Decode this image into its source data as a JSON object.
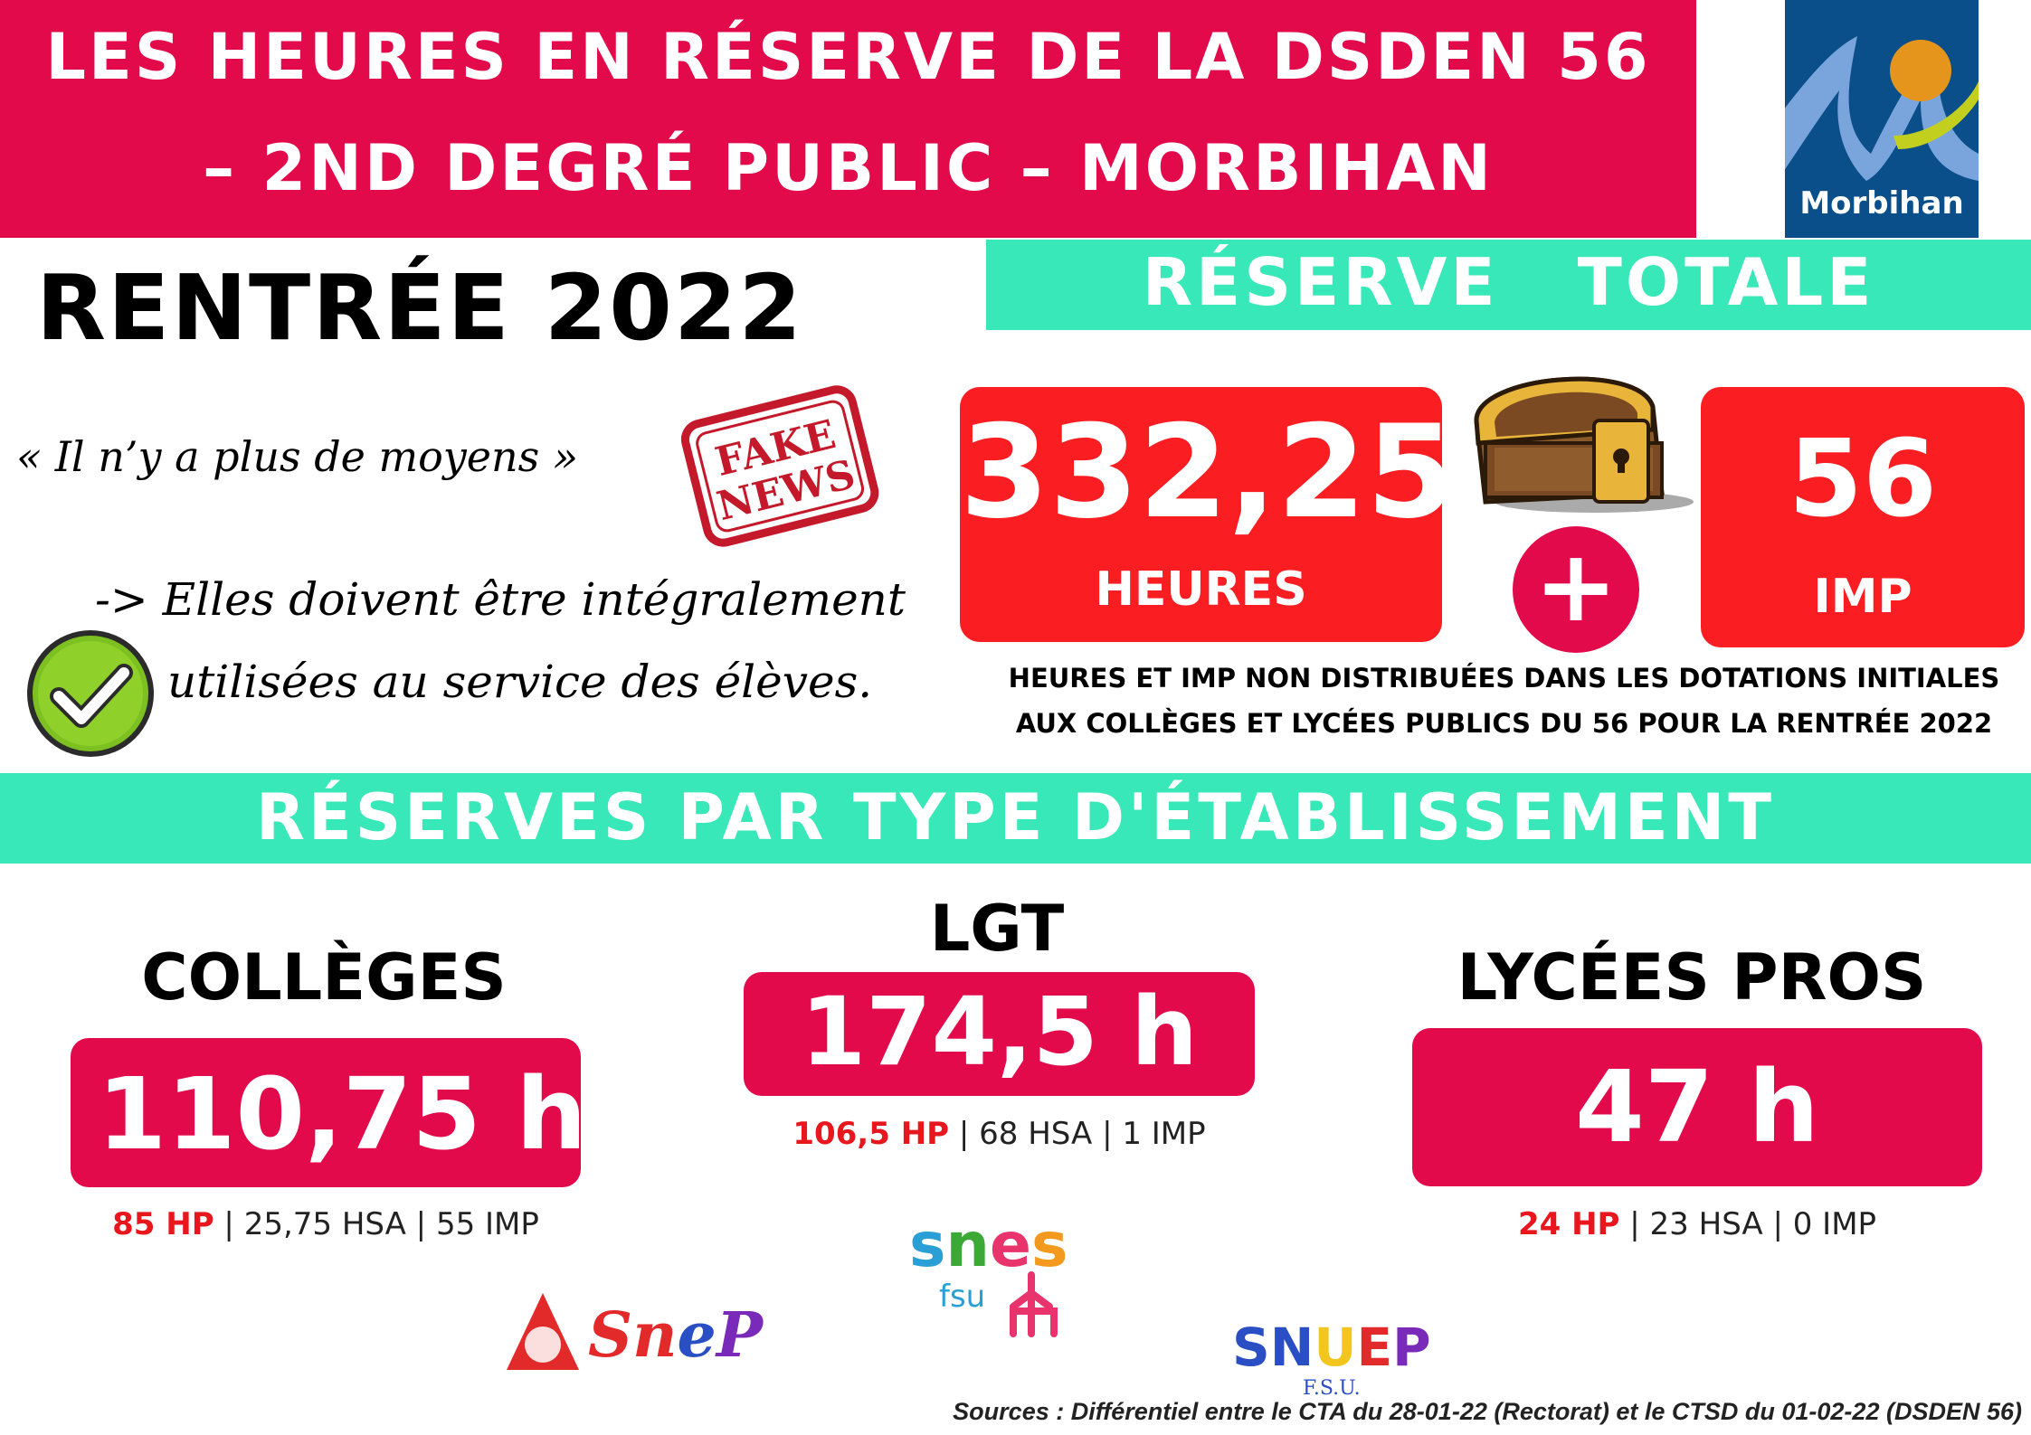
{
  "header": {
    "title_line1": "LES HEURES EN RÉSERVE DE LA DSDEN 56",
    "title_line2": "– 2ND DEGRÉ PUBLIC –  MORBIHAN",
    "logo_label": "Morbihan"
  },
  "intro": {
    "rentree": "RENTRÉE 2022",
    "quote": "« Il n’y a plus de moyens »",
    "stamp_text_line1": "FAKE",
    "stamp_text_line2": "NEWS",
    "must_line1": "-> Elles doivent être intégralement",
    "must_line2": "utilisées au service des élèves."
  },
  "reserve_totale": {
    "title": "RÉSERVE   TOTALE",
    "hours_value": "332,25",
    "hours_unit": "HEURES",
    "plus": "+",
    "imp_value": "56",
    "imp_unit": "IMP",
    "desc_line1": "HEURES ET IMP NON DISTRIBUÉES DANS LES DOTATIONS INITIALES",
    "desc_line2": "AUX COLLÈGES ET LYCÉES PUBLICS DU  56  POUR LA RENTRÉE 2022"
  },
  "types": {
    "title": "RÉSERVES PAR TYPE D'ÉTABLISSEMENT",
    "colleges": {
      "title": "COLLÈGES",
      "value": "110,75 h",
      "hp": "85 HP",
      "rest": " | 25,75 HSA  |  55 IMP"
    },
    "lgt": {
      "title": "LGT",
      "value": "174,5 h",
      "hp": "106,5 HP",
      "rest": " | 68 HSA  | 1 IMP"
    },
    "lp": {
      "title": "LYCÉES PROS",
      "value": "47 h",
      "hp": "24 HP",
      "rest": " |  23 HSA  |  0 IMP"
    }
  },
  "logos": {
    "snes": "snes",
    "snes_sub": "fsu",
    "snep": "Snep",
    "snuep": "SNUEP",
    "snuep_sub": "F.S.U."
  },
  "sources": "Sources : Différentiel entre le CTA du 28-01-22 (Rectorat) et le CTSD du 01-02-22 (DSDEN 56)",
  "colors": {
    "banner_pink": "#e30a4c",
    "teal": "#39e8b8",
    "red": "#fa1e22",
    "navy": "#0b4f8a"
  }
}
